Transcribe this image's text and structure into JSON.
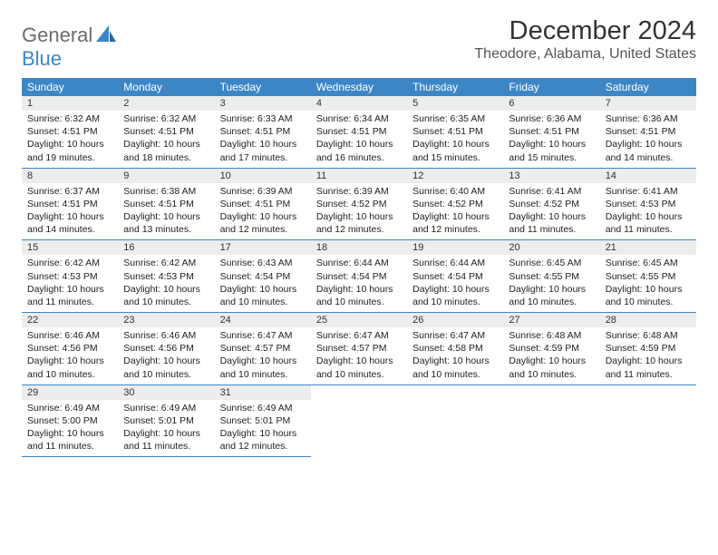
{
  "brand": {
    "part1": "General",
    "part2": "Blue"
  },
  "title": "December 2024",
  "location": "Theodore, Alabama, United States",
  "colors": {
    "header_bg": "#3d86c6",
    "header_text": "#ffffff",
    "daynum_bg": "#eceded",
    "cell_border": "#3d86c6",
    "logo_gray": "#6c6c6c",
    "logo_blue": "#3d86c6",
    "body_text": "#222222"
  },
  "day_labels": [
    "Sunday",
    "Monday",
    "Tuesday",
    "Wednesday",
    "Thursday",
    "Friday",
    "Saturday"
  ],
  "weeks": [
    [
      {
        "n": "1",
        "sr": "Sunrise: 6:32 AM",
        "ss": "Sunset: 4:51 PM",
        "d1": "Daylight: 10 hours",
        "d2": "and 19 minutes."
      },
      {
        "n": "2",
        "sr": "Sunrise: 6:32 AM",
        "ss": "Sunset: 4:51 PM",
        "d1": "Daylight: 10 hours",
        "d2": "and 18 minutes."
      },
      {
        "n": "3",
        "sr": "Sunrise: 6:33 AM",
        "ss": "Sunset: 4:51 PM",
        "d1": "Daylight: 10 hours",
        "d2": "and 17 minutes."
      },
      {
        "n": "4",
        "sr": "Sunrise: 6:34 AM",
        "ss": "Sunset: 4:51 PM",
        "d1": "Daylight: 10 hours",
        "d2": "and 16 minutes."
      },
      {
        "n": "5",
        "sr": "Sunrise: 6:35 AM",
        "ss": "Sunset: 4:51 PM",
        "d1": "Daylight: 10 hours",
        "d2": "and 15 minutes."
      },
      {
        "n": "6",
        "sr": "Sunrise: 6:36 AM",
        "ss": "Sunset: 4:51 PM",
        "d1": "Daylight: 10 hours",
        "d2": "and 15 minutes."
      },
      {
        "n": "7",
        "sr": "Sunrise: 6:36 AM",
        "ss": "Sunset: 4:51 PM",
        "d1": "Daylight: 10 hours",
        "d2": "and 14 minutes."
      }
    ],
    [
      {
        "n": "8",
        "sr": "Sunrise: 6:37 AM",
        "ss": "Sunset: 4:51 PM",
        "d1": "Daylight: 10 hours",
        "d2": "and 14 minutes."
      },
      {
        "n": "9",
        "sr": "Sunrise: 6:38 AM",
        "ss": "Sunset: 4:51 PM",
        "d1": "Daylight: 10 hours",
        "d2": "and 13 minutes."
      },
      {
        "n": "10",
        "sr": "Sunrise: 6:39 AM",
        "ss": "Sunset: 4:51 PM",
        "d1": "Daylight: 10 hours",
        "d2": "and 12 minutes."
      },
      {
        "n": "11",
        "sr": "Sunrise: 6:39 AM",
        "ss": "Sunset: 4:52 PM",
        "d1": "Daylight: 10 hours",
        "d2": "and 12 minutes."
      },
      {
        "n": "12",
        "sr": "Sunrise: 6:40 AM",
        "ss": "Sunset: 4:52 PM",
        "d1": "Daylight: 10 hours",
        "d2": "and 12 minutes."
      },
      {
        "n": "13",
        "sr": "Sunrise: 6:41 AM",
        "ss": "Sunset: 4:52 PM",
        "d1": "Daylight: 10 hours",
        "d2": "and 11 minutes."
      },
      {
        "n": "14",
        "sr": "Sunrise: 6:41 AM",
        "ss": "Sunset: 4:53 PM",
        "d1": "Daylight: 10 hours",
        "d2": "and 11 minutes."
      }
    ],
    [
      {
        "n": "15",
        "sr": "Sunrise: 6:42 AM",
        "ss": "Sunset: 4:53 PM",
        "d1": "Daylight: 10 hours",
        "d2": "and 11 minutes."
      },
      {
        "n": "16",
        "sr": "Sunrise: 6:42 AM",
        "ss": "Sunset: 4:53 PM",
        "d1": "Daylight: 10 hours",
        "d2": "and 10 minutes."
      },
      {
        "n": "17",
        "sr": "Sunrise: 6:43 AM",
        "ss": "Sunset: 4:54 PM",
        "d1": "Daylight: 10 hours",
        "d2": "and 10 minutes."
      },
      {
        "n": "18",
        "sr": "Sunrise: 6:44 AM",
        "ss": "Sunset: 4:54 PM",
        "d1": "Daylight: 10 hours",
        "d2": "and 10 minutes."
      },
      {
        "n": "19",
        "sr": "Sunrise: 6:44 AM",
        "ss": "Sunset: 4:54 PM",
        "d1": "Daylight: 10 hours",
        "d2": "and 10 minutes."
      },
      {
        "n": "20",
        "sr": "Sunrise: 6:45 AM",
        "ss": "Sunset: 4:55 PM",
        "d1": "Daylight: 10 hours",
        "d2": "and 10 minutes."
      },
      {
        "n": "21",
        "sr": "Sunrise: 6:45 AM",
        "ss": "Sunset: 4:55 PM",
        "d1": "Daylight: 10 hours",
        "d2": "and 10 minutes."
      }
    ],
    [
      {
        "n": "22",
        "sr": "Sunrise: 6:46 AM",
        "ss": "Sunset: 4:56 PM",
        "d1": "Daylight: 10 hours",
        "d2": "and 10 minutes."
      },
      {
        "n": "23",
        "sr": "Sunrise: 6:46 AM",
        "ss": "Sunset: 4:56 PM",
        "d1": "Daylight: 10 hours",
        "d2": "and 10 minutes."
      },
      {
        "n": "24",
        "sr": "Sunrise: 6:47 AM",
        "ss": "Sunset: 4:57 PM",
        "d1": "Daylight: 10 hours",
        "d2": "and 10 minutes."
      },
      {
        "n": "25",
        "sr": "Sunrise: 6:47 AM",
        "ss": "Sunset: 4:57 PM",
        "d1": "Daylight: 10 hours",
        "d2": "and 10 minutes."
      },
      {
        "n": "26",
        "sr": "Sunrise: 6:47 AM",
        "ss": "Sunset: 4:58 PM",
        "d1": "Daylight: 10 hours",
        "d2": "and 10 minutes."
      },
      {
        "n": "27",
        "sr": "Sunrise: 6:48 AM",
        "ss": "Sunset: 4:59 PM",
        "d1": "Daylight: 10 hours",
        "d2": "and 10 minutes."
      },
      {
        "n": "28",
        "sr": "Sunrise: 6:48 AM",
        "ss": "Sunset: 4:59 PM",
        "d1": "Daylight: 10 hours",
        "d2": "and 11 minutes."
      }
    ],
    [
      {
        "n": "29",
        "sr": "Sunrise: 6:49 AM",
        "ss": "Sunset: 5:00 PM",
        "d1": "Daylight: 10 hours",
        "d2": "and 11 minutes."
      },
      {
        "n": "30",
        "sr": "Sunrise: 6:49 AM",
        "ss": "Sunset: 5:01 PM",
        "d1": "Daylight: 10 hours",
        "d2": "and 11 minutes."
      },
      {
        "n": "31",
        "sr": "Sunrise: 6:49 AM",
        "ss": "Sunset: 5:01 PM",
        "d1": "Daylight: 10 hours",
        "d2": "and 12 minutes."
      },
      null,
      null,
      null,
      null
    ]
  ]
}
